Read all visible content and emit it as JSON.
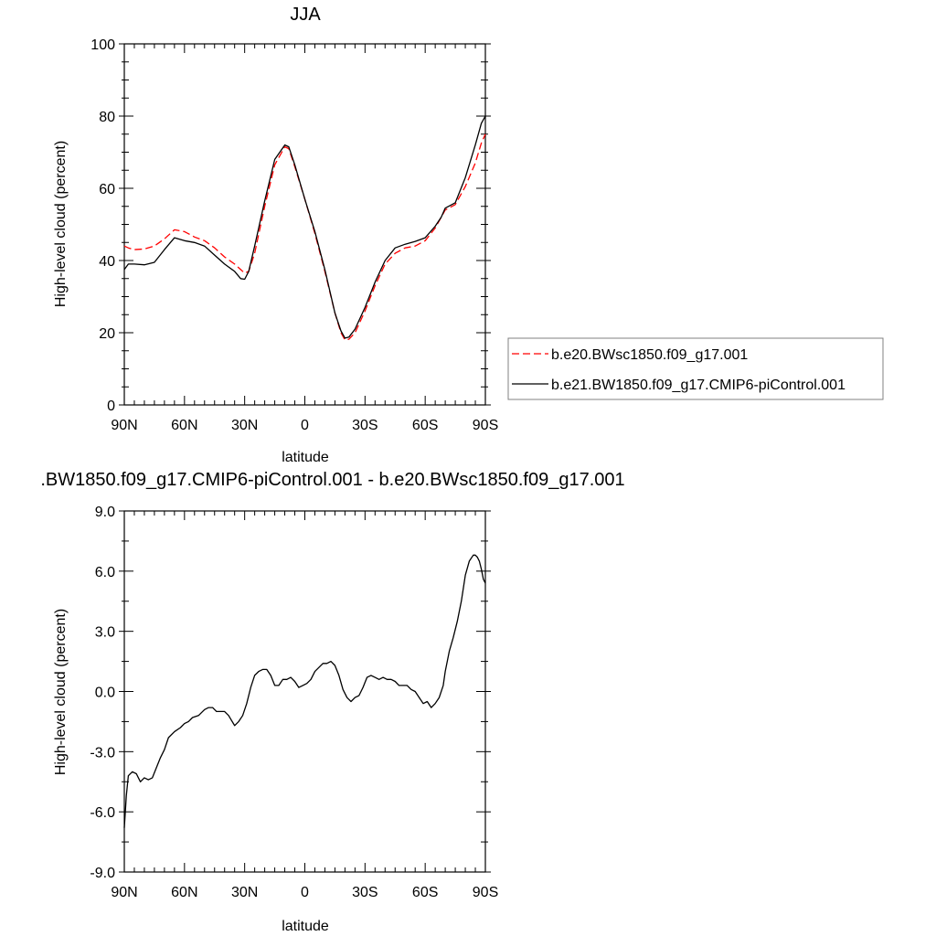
{
  "chart_data": [
    {
      "type": "line",
      "title": "JJA",
      "xlabel": "latitude",
      "ylabel": "High-level cloud (percent)",
      "xlim": [
        90,
        -90
      ],
      "ylim": [
        0,
        100
      ],
      "x_ticks": [
        90,
        60,
        30,
        0,
        -30,
        -60,
        -90
      ],
      "x_tick_labels": [
        "90N",
        "60N",
        "30N",
        "0",
        "30S",
        "60S",
        "90S"
      ],
      "y_ticks": [
        0,
        20,
        40,
        60,
        80,
        100
      ],
      "y_tick_labels": [
        "0",
        "20",
        "40",
        "60",
        "80",
        "100"
      ],
      "legend_position": "right, outside plot",
      "series": [
        {
          "name": "b.e20.BWsc1850.f09_g17.001",
          "color": "#ff0000",
          "dash": "dashed",
          "x": [
            90,
            88,
            85,
            80,
            75,
            70,
            65,
            60,
            55,
            50,
            45,
            40,
            35,
            32,
            30,
            28,
            25,
            20,
            15,
            10,
            8,
            5,
            0,
            -5,
            -10,
            -15,
            -18,
            -20,
            -22,
            -25,
            -30,
            -35,
            -40,
            -45,
            -50,
            -55,
            -60,
            -65,
            -68,
            -70,
            -75,
            -80,
            -85,
            -88,
            -90
          ],
          "y": [
            44,
            43.5,
            43,
            43.2,
            44,
            46,
            48.5,
            48,
            46.5,
            45.5,
            43.5,
            41,
            39,
            37.5,
            36.5,
            37,
            42,
            55,
            66.5,
            71.5,
            71,
            66,
            57,
            47.5,
            37,
            25.5,
            20,
            18,
            18.2,
            20,
            26,
            33,
            39,
            42,
            43.5,
            44,
            45.5,
            49,
            52,
            54,
            55.5,
            60.5,
            67,
            72.5,
            75
          ]
        },
        {
          "name": "b.e21.BW1850.f09_g17.CMIP6-piControl.001",
          "color": "#000000",
          "dash": "solid",
          "x": [
            90,
            88,
            85,
            80,
            75,
            70,
            65,
            60,
            55,
            50,
            45,
            40,
            35,
            32,
            30,
            28,
            25,
            20,
            15,
            10,
            8,
            5,
            0,
            -5,
            -10,
            -15,
            -18,
            -20,
            -22,
            -25,
            -30,
            -35,
            -40,
            -45,
            -50,
            -55,
            -60,
            -65,
            -68,
            -70,
            -75,
            -80,
            -85,
            -88,
            -90
          ],
          "y": [
            37.5,
            39,
            39,
            38.8,
            39.5,
            43,
            46.3,
            45.5,
            45,
            44,
            41.5,
            39,
            37,
            35,
            34.8,
            37,
            44,
            56.5,
            68,
            72,
            71.5,
            66.5,
            57,
            48,
            37.5,
            25.5,
            20.5,
            18.5,
            18.8,
            21,
            27,
            34,
            40,
            43.5,
            44.5,
            45.3,
            46.3,
            49.5,
            52,
            54.5,
            56,
            63,
            72,
            78,
            80
          ]
        }
      ]
    },
    {
      "type": "line",
      "title": ".BW1850.f09_g17.CMIP6-piControl.001 - b.e20.BWsc1850.f09_g17.001",
      "xlabel": "latitude",
      "ylabel": "High-level cloud (percent)",
      "xlim": [
        90,
        -90
      ],
      "ylim": [
        -9,
        9
      ],
      "x_ticks": [
        90,
        60,
        30,
        0,
        -30,
        -60,
        -90
      ],
      "x_tick_labels": [
        "90N",
        "60N",
        "30N",
        "0",
        "30S",
        "60S",
        "90S"
      ],
      "y_ticks": [
        -9,
        -6,
        -3,
        0,
        3,
        6,
        9
      ],
      "y_tick_labels": [
        "-9.0",
        "-6.0",
        "-3.0",
        "0.0",
        "3.0",
        "6.0",
        "9.0"
      ],
      "series": [
        {
          "color": "#000000",
          "dash": "solid",
          "x": [
            90,
            89.5,
            89,
            88,
            86,
            84,
            83,
            82,
            80,
            78,
            76,
            74,
            72,
            70,
            68,
            65,
            62,
            60,
            58,
            56,
            53,
            50,
            48,
            46,
            44,
            42,
            40,
            38,
            35,
            33,
            31,
            29,
            27,
            25,
            23,
            21,
            19,
            17,
            15,
            13,
            11,
            9,
            7,
            5,
            3,
            1,
            -1,
            -3,
            -5,
            -7,
            -9,
            -11,
            -13,
            -15,
            -17,
            -19,
            -21,
            -23,
            -25,
            -27,
            -29,
            -31,
            -33,
            -35,
            -37,
            -39,
            -41,
            -43,
            -45,
            -47,
            -49,
            -51,
            -53,
            -55,
            -57,
            -59,
            -61,
            -63,
            -65,
            -67,
            -69,
            -70,
            -72,
            -74,
            -76,
            -78,
            -80,
            -82,
            -84,
            -85,
            -86,
            -87,
            -88,
            -89,
            -90
          ],
          "y": [
            -6.8,
            -6.0,
            -5.2,
            -4.2,
            -4.0,
            -4.1,
            -4.3,
            -4.5,
            -4.3,
            -4.4,
            -4.3,
            -3.8,
            -3.3,
            -2.9,
            -2.3,
            -2.0,
            -1.8,
            -1.6,
            -1.5,
            -1.3,
            -1.2,
            -0.9,
            -0.8,
            -0.8,
            -1.0,
            -1.0,
            -1.0,
            -1.2,
            -1.7,
            -1.5,
            -1.2,
            -0.6,
            0.2,
            0.8,
            1.0,
            1.1,
            1.1,
            0.8,
            0.3,
            0.3,
            0.6,
            0.6,
            0.7,
            0.5,
            0.2,
            0.3,
            0.4,
            0.6,
            1.0,
            1.2,
            1.4,
            1.4,
            1.5,
            1.3,
            0.8,
            0.1,
            -0.3,
            -0.5,
            -0.3,
            -0.2,
            0.2,
            0.7,
            0.8,
            0.7,
            0.6,
            0.7,
            0.6,
            0.6,
            0.5,
            0.3,
            0.3,
            0.3,
            0.1,
            0.0,
            -0.3,
            -0.6,
            -0.5,
            -0.8,
            -0.6,
            -0.3,
            0.3,
            1.0,
            2.0,
            2.7,
            3.5,
            4.5,
            5.8,
            6.5,
            6.8,
            6.8,
            6.7,
            6.5,
            6.1,
            5.6,
            5.4
          ]
        }
      ]
    }
  ]
}
